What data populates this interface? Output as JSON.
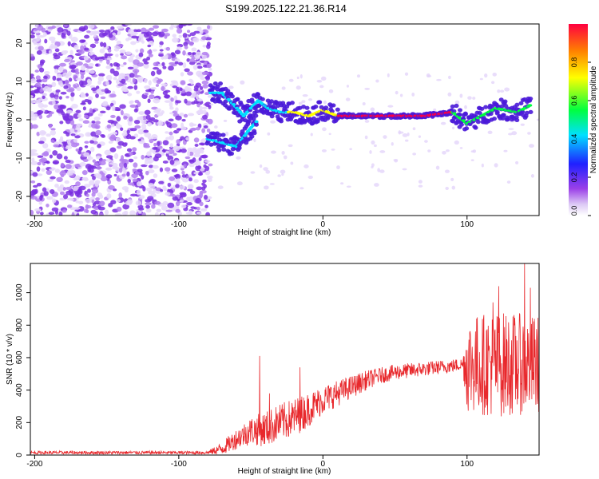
{
  "title": "S199.2025.122.21.36.R14",
  "chart_data": [
    {
      "type": "heatmap",
      "xlabel": "Height of straight line (km)",
      "ylabel": "Frequency (Hz)",
      "xlim": [
        -203,
        150
      ],
      "ylim": [
        -25,
        25
      ],
      "x_ticks": [
        -200,
        -100,
        0,
        100
      ],
      "y_ticks": [
        -20,
        -10,
        0,
        10,
        20
      ],
      "colorbar": {
        "label": "Normalized spectral amplitude",
        "range": [
          0,
          1
        ],
        "ticks": [
          "0.0",
          "0.2",
          "0.4",
          "0.6",
          "0.8"
        ],
        "colors": [
          "#ffffff",
          "#dcc8f5",
          "#9b40e8",
          "#2020ff",
          "#00e0ff",
          "#00ff40",
          "#ffff00",
          "#ff8000",
          "#ff0040"
        ]
      },
      "trace": {
        "description_values": "approximate ridge of strong amplitude (x km, frequency Hz)",
        "points": [
          [
            -78,
            7
          ],
          [
            -70,
            7
          ],
          [
            -62,
            4
          ],
          [
            -55,
            1
          ],
          [
            -45,
            5
          ],
          [
            -38,
            3
          ],
          [
            -30,
            2
          ],
          [
            -20,
            2
          ],
          [
            -10,
            1
          ],
          [
            0,
            2.5
          ],
          [
            10,
            1
          ],
          [
            30,
            1
          ],
          [
            50,
            1
          ],
          [
            70,
            1
          ],
          [
            90,
            2
          ],
          [
            100,
            -1
          ],
          [
            110,
            1
          ],
          [
            120,
            3
          ],
          [
            135,
            2
          ],
          [
            145,
            4
          ]
        ],
        "lower_branch": [
          [
            -80,
            -5
          ],
          [
            -70,
            -6
          ],
          [
            -60,
            -7
          ],
          [
            -52,
            -3
          ],
          [
            -45,
            0
          ]
        ]
      }
    },
    {
      "type": "line",
      "xlabel": "Height of straight line (km)",
      "ylabel": "SNR (10 * v/v)",
      "xlim": [
        -203,
        150
      ],
      "ylim": [
        0,
        1180
      ],
      "x_ticks": [
        -200,
        -100,
        0,
        100
      ],
      "y_ticks": [
        0,
        200,
        400,
        600,
        800,
        1000
      ],
      "color": "#e8282c",
      "envelope": [
        [
          -203,
          15
        ],
        [
          -80,
          15
        ],
        [
          -70,
          40
        ],
        [
          -60,
          100
        ],
        [
          -50,
          150
        ],
        [
          -40,
          160
        ],
        [
          -30,
          200
        ],
        [
          -20,
          230
        ],
        [
          -10,
          280
        ],
        [
          0,
          340
        ],
        [
          10,
          380
        ],
        [
          20,
          420
        ],
        [
          30,
          460
        ],
        [
          40,
          490
        ],
        [
          50,
          510
        ],
        [
          60,
          520
        ],
        [
          70,
          530
        ],
        [
          80,
          540
        ],
        [
          90,
          550
        ],
        [
          98,
          560
        ],
        [
          100,
          560
        ],
        [
          150,
          560
        ]
      ],
      "noise": [
        [
          -203,
          10
        ],
        [
          -80,
          10
        ],
        [
          -70,
          40
        ],
        [
          -40,
          110
        ],
        [
          -20,
          120
        ],
        [
          0,
          90
        ],
        [
          40,
          50
        ],
        [
          97,
          40
        ],
        [
          100,
          300
        ],
        [
          120,
          330
        ],
        [
          150,
          300
        ]
      ],
      "spikes": [
        [
          -44,
          610
        ],
        [
          -16,
          540
        ],
        [
          -37,
          380
        ],
        [
          118,
          940
        ],
        [
          122,
          1040
        ],
        [
          140,
          1180
        ],
        [
          144,
          1030
        ]
      ]
    }
  ]
}
